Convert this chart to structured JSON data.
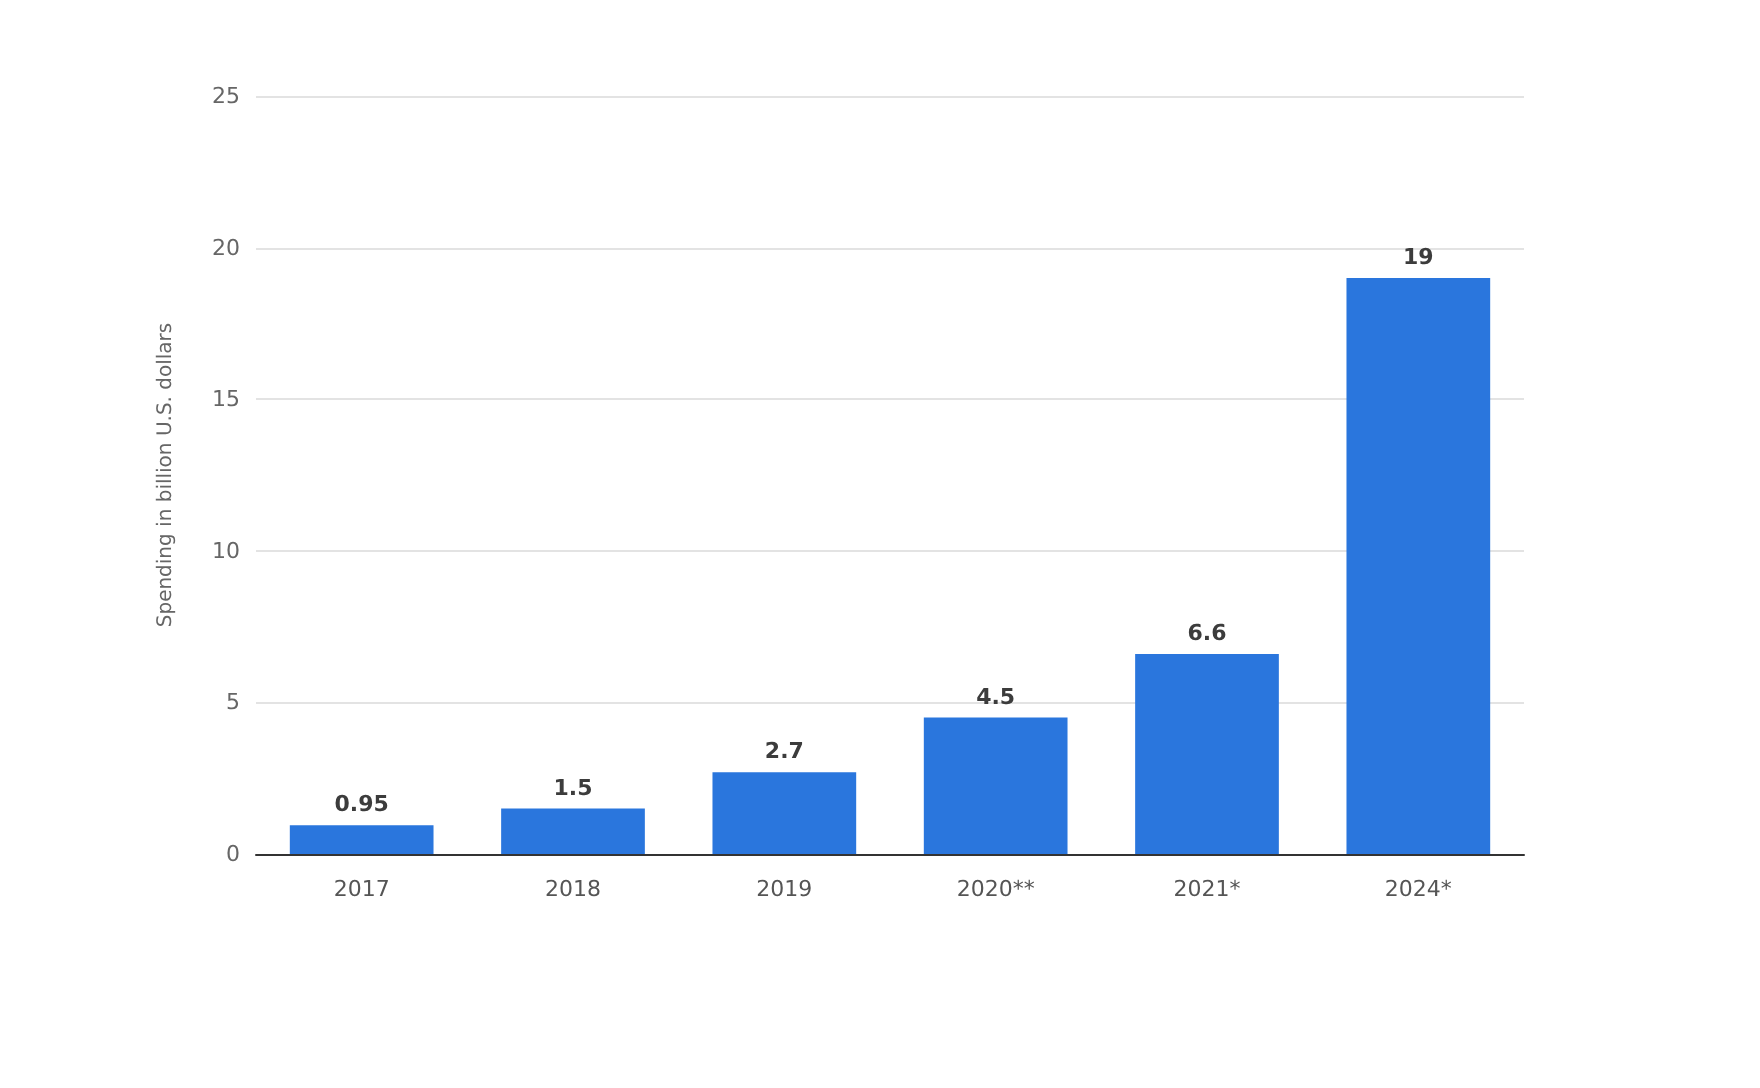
{
  "chart_data": {
    "type": "bar",
    "ylabel": "Spending in billion U.S. dollars",
    "categories": [
      "2017",
      "2018",
      "2019",
      "2020**",
      "2021*",
      "2024*"
    ],
    "values": [
      0.95,
      1.5,
      2.7,
      4.5,
      6.6,
      19
    ],
    "color": "#2a76dd",
    "ylim": [
      0,
      25
    ],
    "yticks": [
      0,
      5,
      10,
      15,
      20,
      25
    ],
    "grid": "y",
    "data_labels": true
  }
}
